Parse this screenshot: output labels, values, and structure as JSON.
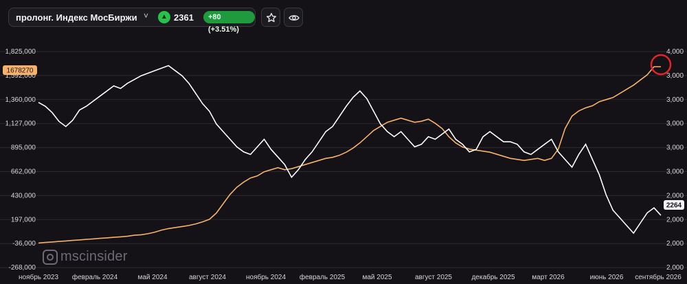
{
  "header": {
    "instrument": "пролонг. Индекс МосБиржи",
    "price": "2361",
    "change": "+80 (+3.51%)",
    "up_arrow": "▲",
    "chevron": "˅"
  },
  "watermark": "mscinsider",
  "colors": {
    "background": "#141217",
    "white_series": "#ffffff",
    "orange_series": "#f6b26b",
    "positive": "#27c24c",
    "highlight_circle": "#e0262b"
  },
  "chart_data": {
    "type": "line",
    "x_labels": [
      "ноябрь 2023",
      "февраль 2024",
      "май 2024",
      "август 2024",
      "ноябрь 2024",
      "февраль 2025",
      "май 2025",
      "август 2025",
      "декабрь 2025",
      "март 2026",
      "июнь 2026",
      "сентябрь 2026"
    ],
    "y_left_ticks": [
      "1,825,000",
      "1,592,000",
      "1,360,000",
      "1,127,000",
      "895,000",
      "662,000",
      "430,000",
      "197,000",
      "-36,000",
      "-268,000"
    ],
    "y_right_ticks": [
      "4,000",
      "3,000",
      "3,000",
      "3,000",
      "3,000",
      "3,000",
      "2,000",
      "2,000",
      "2,000",
      "2,000"
    ],
    "y_left_range": [
      -268000,
      1825000
    ],
    "left_last_value_label": "1678270",
    "right_last_value_label": "2264",
    "grid": true,
    "series": [
      {
        "axis": "right",
        "color": "#ffffff",
        "values": [
          3150,
          3120,
          3070,
          3000,
          2960,
          3010,
          3090,
          3120,
          3160,
          3200,
          3240,
          3280,
          3260,
          3300,
          3330,
          3360,
          3380,
          3400,
          3420,
          3440,
          3400,
          3360,
          3300,
          3220,
          3140,
          3080,
          2980,
          2920,
          2860,
          2800,
          2760,
          2740,
          2800,
          2860,
          2780,
          2720,
          2660,
          2560,
          2620,
          2700,
          2760,
          2840,
          2920,
          2960,
          3040,
          3120,
          3190,
          3240,
          3180,
          3080,
          2980,
          2920,
          2880,
          2920,
          2860,
          2800,
          2820,
          2880,
          2860,
          2900,
          2940,
          2860,
          2820,
          2760,
          2780,
          2880,
          2920,
          2880,
          2840,
          2840,
          2820,
          2760,
          2740,
          2780,
          2820,
          2860,
          2760,
          2700,
          2640,
          2740,
          2820,
          2700,
          2580,
          2420,
          2300,
          2240,
          2180,
          2120,
          2200,
          2280,
          2320,
          2260
        ]
      },
      {
        "axis": "left",
        "color": "#f6b26b",
        "values": [
          -30000,
          -25000,
          -20000,
          -15000,
          -10000,
          -5000,
          0,
          5000,
          10000,
          15000,
          20000,
          25000,
          30000,
          35000,
          45000,
          50000,
          60000,
          75000,
          95000,
          110000,
          120000,
          130000,
          140000,
          155000,
          175000,
          200000,
          260000,
          350000,
          440000,
          510000,
          560000,
          600000,
          620000,
          660000,
          680000,
          700000,
          680000,
          690000,
          710000,
          730000,
          750000,
          770000,
          790000,
          800000,
          820000,
          850000,
          890000,
          940000,
          1000000,
          1060000,
          1100000,
          1140000,
          1160000,
          1180000,
          1160000,
          1140000,
          1150000,
          1170000,
          1130000,
          1080000,
          1000000,
          940000,
          900000,
          880000,
          870000,
          860000,
          850000,
          830000,
          810000,
          790000,
          780000,
          770000,
          780000,
          790000,
          770000,
          790000,
          880000,
          1080000,
          1200000,
          1250000,
          1280000,
          1300000,
          1340000,
          1360000,
          1380000,
          1420000,
          1460000,
          1500000,
          1550000,
          1600000,
          1678270,
          1678270
        ]
      }
    ]
  }
}
